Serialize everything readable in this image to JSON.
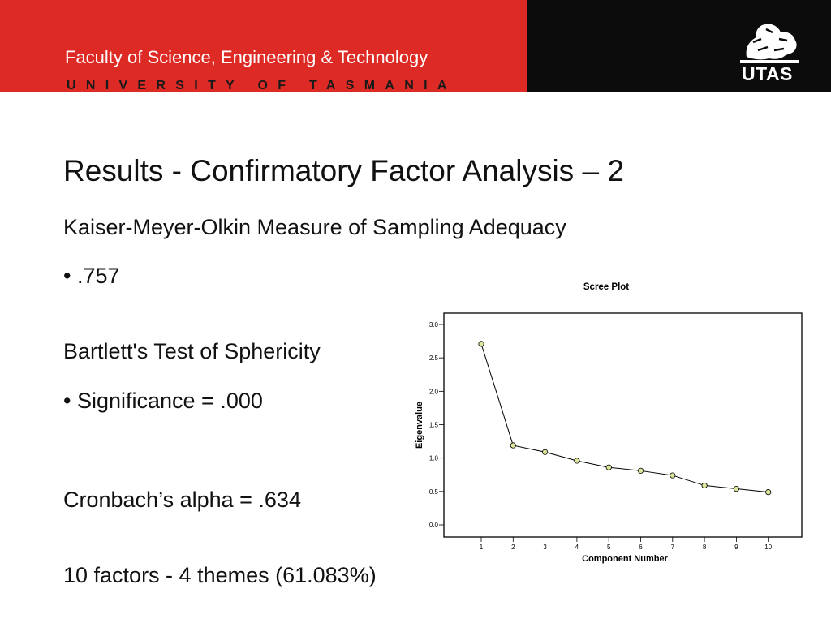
{
  "header": {
    "faculty": "Faculty of Science, Engineering & Technology",
    "university": "UNIVERSITY OF TASMANIA",
    "logo_text": "UTAS",
    "colors": {
      "red_band": "#dd2a25",
      "black_band": "#0c0c0c"
    }
  },
  "slide": {
    "title": "Results - Confirmatory Factor Analysis – 2",
    "lines": [
      "Kaiser-Meyer-Olkin Measure of Sampling Adequacy",
      "• .757",
      "Bartlett's Test of Sphericity",
      "• Significance = .000",
      "Cronbach’s alpha = .634",
      "10 factors - 4 themes (61.083%)"
    ]
  },
  "chart_data": {
    "type": "line",
    "title": "Scree Plot",
    "xlabel": "Component Number",
    "ylabel": "Eigenvalue",
    "x": [
      1,
      2,
      3,
      4,
      5,
      6,
      7,
      8,
      9,
      10
    ],
    "values": [
      2.71,
      1.19,
      1.09,
      0.96,
      0.86,
      0.81,
      0.74,
      0.59,
      0.54,
      0.49
    ],
    "yticks": [
      "0.0",
      "0.5",
      "1.0",
      "1.5",
      "2.0",
      "2.5",
      "3.0"
    ],
    "xticks": [
      "1",
      "2",
      "3",
      "4",
      "5",
      "6",
      "7",
      "8",
      "9",
      "10"
    ],
    "ylim": [
      0,
      3
    ],
    "xlim": [
      0,
      11
    ],
    "grid": false,
    "marker_color": "#dfe59a"
  }
}
